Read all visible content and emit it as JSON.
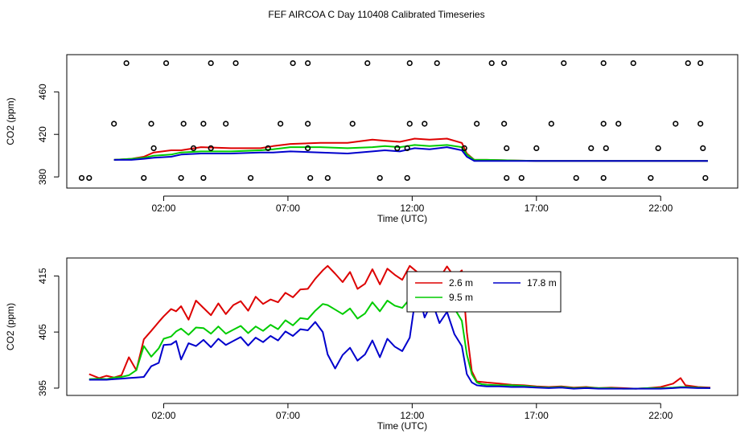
{
  "figure_title": "FEF AIRCOA C  Day 110408  Calibrated Timeseries",
  "colors": {
    "red": "#dd0000",
    "green": "#00cc00",
    "blue": "#0000cc",
    "black": "#000000"
  },
  "chart_data": [
    {
      "type": "line",
      "title": "",
      "xlabel": "Time (UTC)",
      "ylabel": "CO2 (ppm)",
      "x_ticks": [
        2,
        7,
        12,
        17,
        22
      ],
      "x_tick_labels": [
        "02:00",
        "07:00",
        "12:00",
        "17:00",
        "22:00"
      ],
      "xlim": [
        -1.9,
        25.1
      ],
      "y_ticks": [
        380,
        420,
        460
      ],
      "y_tick_labels": [
        "380",
        "420",
        "460"
      ],
      "ylim": [
        369.5,
        495
      ],
      "grid": false,
      "scatter_points": {
        "name": "outliers",
        "marker": "open-circle",
        "x": [
          0.5,
          2.1,
          3.9,
          4.9,
          7.2,
          7.8,
          10.2,
          11.9,
          13.0,
          15.2,
          15.7,
          18.1,
          19.7,
          20.9,
          23.1,
          23.6,
          0.0,
          1.5,
          2.8,
          3.6,
          4.5,
          6.7,
          7.8,
          9.6,
          11.9,
          12.5,
          14.6,
          15.7,
          17.6,
          19.7,
          20.3,
          22.6,
          23.6,
          1.6,
          3.2,
          3.9,
          6.2,
          7.8,
          11.4,
          11.8,
          14.1,
          15.8,
          17.0,
          19.2,
          19.8,
          21.9,
          23.7,
          -1.0,
          -1.3,
          1.2,
          2.7,
          3.6,
          5.5,
          7.9,
          8.6,
          10.7,
          11.8,
          15.8,
          16.4,
          18.6,
          19.7,
          21.6,
          23.8
        ],
        "y": [
          487,
          487,
          487,
          487,
          487,
          487,
          487,
          487,
          487,
          487,
          487,
          487,
          487,
          487,
          487,
          487,
          430,
          430,
          430,
          430,
          430,
          430,
          430,
          430,
          430,
          430,
          430,
          430,
          430,
          430,
          430,
          430,
          430,
          407,
          407,
          407,
          407,
          407,
          407,
          407,
          407,
          407,
          407,
          407,
          407,
          407,
          407,
          379,
          379,
          379,
          379,
          379,
          379,
          379,
          379,
          379,
          379,
          379,
          379,
          379,
          379,
          379,
          379
        ]
      },
      "series": [
        {
          "name": "2.6 m",
          "color": "#dd0000",
          "x": [
            -0.0,
            0.7,
            1.2,
            1.6,
            2.3,
            2.7,
            3.5,
            4.7,
            5.9,
            6.4,
            7.1,
            8.3,
            9.4,
            10.4,
            10.9,
            11.5,
            12.1,
            12.7,
            13.4,
            14.0,
            14.2,
            14.5,
            15.0,
            17.0,
            20.0,
            23.9
          ],
          "y": [
            396,
            397,
            399,
            403,
            405,
            405,
            408,
            407,
            407,
            409,
            411,
            412,
            412,
            415,
            414,
            413,
            416,
            415,
            416,
            412,
            402,
            396,
            396,
            395,
            395,
            395
          ]
        },
        {
          "name": "9.5 m",
          "color": "#00cc00",
          "x": [
            -0.0,
            0.7,
            1.2,
            1.6,
            2.3,
            2.7,
            3.5,
            4.7,
            5.9,
            6.4,
            7.1,
            8.3,
            9.4,
            10.4,
            10.9,
            11.5,
            12.1,
            12.7,
            13.4,
            14.0,
            14.2,
            14.5,
            15.0,
            17.0,
            20.0,
            23.9
          ],
          "y": [
            396,
            397,
            398,
            400,
            401,
            403,
            404,
            404,
            405,
            406,
            408,
            408,
            407,
            408,
            409,
            408,
            410,
            409,
            410,
            408,
            401,
            396,
            396,
            395,
            395,
            395
          ]
        },
        {
          "name": "17.8 m",
          "color": "#0000cc",
          "x": [
            -0.0,
            0.7,
            1.2,
            1.6,
            2.3,
            2.7,
            3.5,
            4.7,
            5.9,
            6.4,
            7.1,
            8.3,
            9.4,
            10.4,
            10.9,
            11.5,
            12.1,
            12.7,
            13.4,
            14.0,
            14.2,
            14.5,
            15.0,
            17.0,
            20.0,
            23.9
          ],
          "y": [
            396,
            396,
            397,
            398,
            399,
            401,
            402,
            402,
            403,
            403,
            404,
            403,
            402,
            404,
            405,
            404,
            407,
            406,
            408,
            405,
            399,
            395,
            395,
            395,
            395,
            395
          ]
        }
      ]
    },
    {
      "type": "line",
      "title": "",
      "xlabel": "Time (UTC)",
      "ylabel": "CO2 (ppm)",
      "x_ticks": [
        2,
        7,
        12,
        17,
        22
      ],
      "x_tick_labels": [
        "02:00",
        "07:00",
        "12:00",
        "17:00",
        "22:00"
      ],
      "xlim": [
        -1.9,
        25.1
      ],
      "y_ticks": [
        395,
        405,
        415
      ],
      "y_tick_labels": [
        "395",
        "405",
        "415"
      ],
      "ylim": [
        393.7,
        418.2
      ],
      "grid": false,
      "legend_placement": "top-right-of-center",
      "legend_entries": [
        {
          "label": "2.6 m",
          "color": "#dd0000"
        },
        {
          "label": "17.8 m",
          "color": "#0000cc"
        },
        {
          "label": "9.5 m",
          "color": "#00cc00"
        }
      ],
      "series": [
        {
          "name": "2.6 m",
          "color": "#dd0000",
          "x": [
            -1.0,
            -0.6,
            -0.3,
            0.0,
            0.3,
            0.6,
            0.9,
            1.2,
            1.5,
            1.8,
            2.0,
            2.3,
            2.5,
            2.7,
            3.0,
            3.3,
            3.6,
            3.9,
            4.2,
            4.5,
            4.8,
            5.1,
            5.4,
            5.7,
            6.0,
            6.3,
            6.6,
            6.9,
            7.2,
            7.5,
            7.8,
            8.1,
            8.4,
            8.6,
            8.9,
            9.2,
            9.5,
            9.8,
            10.1,
            10.4,
            10.7,
            11.0,
            11.3,
            11.6,
            11.9,
            12.2,
            12.5,
            12.8,
            13.1,
            13.4,
            13.7,
            14.0,
            14.2,
            14.4,
            14.6,
            14.8,
            15.0,
            15.5,
            16.0,
            16.5,
            17.0,
            17.5,
            18.0,
            18.5,
            19.0,
            19.5,
            20.0,
            20.5,
            21.0,
            21.5,
            22.0,
            22.5,
            22.8,
            23.0,
            23.5,
            24.0
          ],
          "y": [
            397.5,
            396.8,
            397.2,
            396.9,
            397.3,
            400.5,
            398.2,
            403.7,
            405.2,
            406.8,
            407.8,
            409.1,
            408.7,
            409.6,
            407.2,
            410.6,
            409.3,
            408.0,
            410.1,
            408.2,
            409.8,
            410.5,
            408.8,
            411.3,
            410.0,
            410.8,
            410.3,
            412.0,
            411.2,
            412.6,
            412.7,
            414.5,
            416.0,
            416.8,
            415.4,
            413.9,
            415.7,
            412.7,
            413.6,
            416.2,
            413.5,
            416.3,
            415.2,
            414.3,
            416.8,
            415.7,
            413.8,
            415.1,
            414.6,
            416.7,
            414.8,
            416.0,
            405.0,
            398.0,
            396.2,
            396.1,
            396.0,
            395.8,
            395.6,
            395.5,
            395.3,
            395.2,
            395.3,
            395.1,
            395.2,
            395.0,
            395.1,
            395.0,
            394.9,
            395.0,
            395.2,
            395.8,
            396.8,
            395.5,
            395.2,
            395.1
          ]
        },
        {
          "name": "9.5 m",
          "color": "#00cc00",
          "x": [
            -1.0,
            -0.6,
            -0.3,
            0.0,
            0.3,
            0.6,
            0.9,
            1.2,
            1.5,
            1.8,
            2.0,
            2.3,
            2.5,
            2.7,
            3.0,
            3.3,
            3.6,
            3.9,
            4.2,
            4.5,
            4.8,
            5.1,
            5.4,
            5.7,
            6.0,
            6.3,
            6.6,
            6.9,
            7.2,
            7.5,
            7.8,
            8.1,
            8.4,
            8.6,
            8.9,
            9.2,
            9.5,
            9.8,
            10.1,
            10.4,
            10.7,
            11.0,
            11.3,
            11.6,
            11.9,
            12.2,
            12.5,
            12.8,
            13.1,
            13.4,
            13.7,
            14.0,
            14.2,
            14.4,
            14.6,
            14.8,
            15.0,
            15.5,
            16.0,
            16.5,
            17.0,
            17.5,
            18.0,
            18.5,
            19.0,
            19.5,
            20.0,
            20.5,
            21.0,
            21.5,
            22.0,
            22.5,
            22.8,
            23.0,
            23.5,
            24.0
          ],
          "y": [
            396.6,
            396.7,
            396.6,
            396.9,
            397.0,
            397.3,
            398.2,
            402.5,
            400.6,
            402.1,
            403.8,
            404.2,
            405.1,
            405.6,
            404.5,
            405.8,
            405.7,
            404.7,
            406.0,
            404.7,
            405.4,
            406.1,
            404.8,
            406.0,
            405.2,
            406.3,
            405.5,
            407.1,
            406.2,
            407.5,
            407.3,
            408.8,
            410.0,
            409.8,
            409.0,
            408.2,
            409.2,
            407.4,
            408.3,
            410.3,
            408.7,
            410.6,
            409.7,
            409.3,
            410.9,
            411.3,
            409.8,
            412.0,
            410.7,
            412.0,
            409.2,
            407.0,
            401.0,
            397.5,
            396.0,
            395.7,
            395.6,
            395.5,
            395.5,
            395.4,
            395.2,
            395.1,
            395.2,
            395.0,
            395.1,
            395.0,
            395.0,
            394.9,
            394.9,
            395.0,
            395.0,
            395.1,
            395.2,
            395.2,
            395.1,
            395.0
          ]
        },
        {
          "name": "17.8 m",
          "color": "#0000cc",
          "x": [
            -1.0,
            -0.6,
            -0.3,
            0.0,
            0.3,
            0.6,
            0.9,
            1.2,
            1.5,
            1.8,
            2.0,
            2.3,
            2.5,
            2.7,
            3.0,
            3.3,
            3.6,
            3.9,
            4.2,
            4.5,
            4.8,
            5.1,
            5.4,
            5.7,
            6.0,
            6.3,
            6.6,
            6.9,
            7.2,
            7.5,
            7.8,
            8.1,
            8.4,
            8.6,
            8.9,
            9.2,
            9.5,
            9.8,
            10.1,
            10.4,
            10.7,
            11.0,
            11.3,
            11.6,
            11.9,
            12.2,
            12.5,
            12.8,
            13.1,
            13.4,
            13.7,
            14.0,
            14.2,
            14.4,
            14.6,
            14.8,
            15.0,
            15.5,
            16.0,
            16.5,
            17.0,
            17.5,
            18.0,
            18.5,
            19.0,
            19.5,
            20.0,
            20.5,
            21.0,
            21.5,
            22.0,
            22.5,
            22.8,
            23.0,
            23.5,
            24.0
          ],
          "y": [
            396.5,
            396.5,
            396.5,
            396.6,
            396.7,
            396.8,
            396.9,
            397.0,
            398.9,
            399.5,
            402.7,
            402.8,
            403.4,
            400.1,
            403.0,
            402.5,
            403.6,
            402.3,
            403.8,
            402.7,
            403.4,
            404.1,
            402.6,
            404.0,
            403.2,
            404.3,
            403.5,
            405.1,
            404.3,
            405.5,
            405.3,
            406.8,
            405.0,
            401.0,
            398.5,
            400.9,
            402.2,
            399.9,
            401.0,
            403.5,
            400.5,
            403.8,
            402.4,
            401.6,
            404.0,
            413.1,
            407.6,
            410.4,
            406.6,
            408.6,
            404.6,
            402.5,
            397.5,
            396.0,
            395.5,
            395.4,
            395.3,
            395.3,
            395.2,
            395.2,
            395.1,
            395.0,
            395.1,
            394.9,
            395.0,
            394.9,
            394.9,
            394.9,
            394.9,
            394.9,
            394.9,
            395.0,
            395.1,
            395.1,
            395.0,
            395.0
          ]
        }
      ]
    }
  ]
}
